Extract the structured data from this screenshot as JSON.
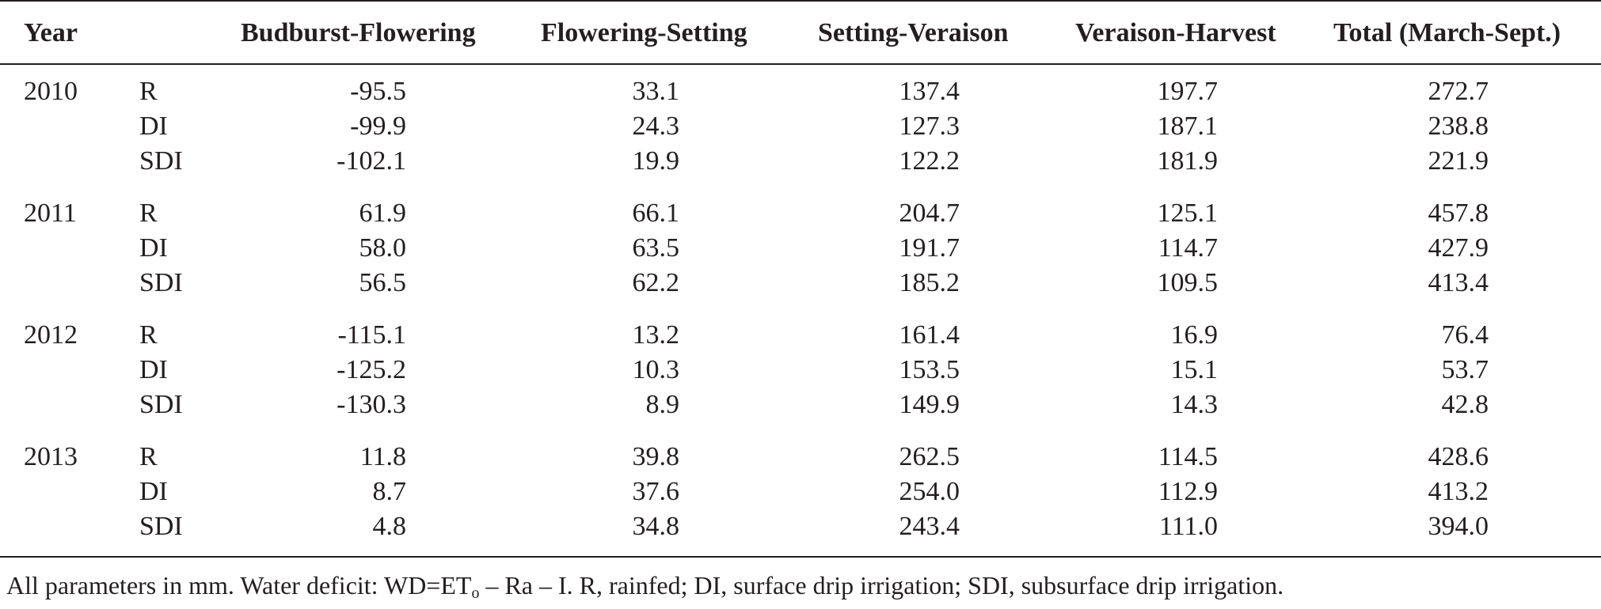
{
  "headers": {
    "year": "Year",
    "treatment": "",
    "c1": "Budburst-Flowering",
    "c2": "Flowering-Setting",
    "c3": "Setting-Veraison",
    "c4": "Veraison-Harvest",
    "c5": "Total (March-Sept.)"
  },
  "groups": [
    {
      "year": "2010",
      "rows": [
        {
          "treatment": "R",
          "values": [
            "-95.5",
            "33.1",
            "137.4",
            "197.7",
            "272.7"
          ]
        },
        {
          "treatment": "DI",
          "values": [
            "-99.9",
            "24.3",
            "127.3",
            "187.1",
            "238.8"
          ]
        },
        {
          "treatment": "SDI",
          "values": [
            "-102.1",
            "19.9",
            "122.2",
            "181.9",
            "221.9"
          ]
        }
      ]
    },
    {
      "year": "2011",
      "rows": [
        {
          "treatment": "R",
          "values": [
            "61.9",
            "66.1",
            "204.7",
            "125.1",
            "457.8"
          ]
        },
        {
          "treatment": "DI",
          "values": [
            "58.0",
            "63.5",
            "191.7",
            "114.7",
            "427.9"
          ]
        },
        {
          "treatment": "SDI",
          "values": [
            "56.5",
            "62.2",
            "185.2",
            "109.5",
            "413.4"
          ]
        }
      ]
    },
    {
      "year": "2012",
      "rows": [
        {
          "treatment": "R",
          "values": [
            "-115.1",
            "13.2",
            "161.4",
            "16.9",
            "76.4"
          ]
        },
        {
          "treatment": "DI",
          "values": [
            "-125.2",
            "10.3",
            "153.5",
            "15.1",
            "53.7"
          ]
        },
        {
          "treatment": "SDI",
          "values": [
            "-130.3",
            "8.9",
            "149.9",
            "14.3",
            "42.8"
          ]
        }
      ]
    },
    {
      "year": "2013",
      "rows": [
        {
          "treatment": "R",
          "values": [
            "11.8",
            "39.8",
            "262.5",
            "114.5",
            "428.6"
          ]
        },
        {
          "treatment": "DI",
          "values": [
            "8.7",
            "37.6",
            "254.0",
            "112.9",
            "413.2"
          ]
        },
        {
          "treatment": "SDI",
          "values": [
            "4.8",
            "34.8",
            "243.4",
            "111.0",
            "394.0"
          ]
        }
      ]
    }
  ],
  "footnote": {
    "before": "All parameters in mm. Water deficit: WD=ET",
    "subscript": "o",
    "after": " – Ra – I. R, rainfed; DI, surface drip irrigation; SDI, subsurface drip irrigation."
  }
}
